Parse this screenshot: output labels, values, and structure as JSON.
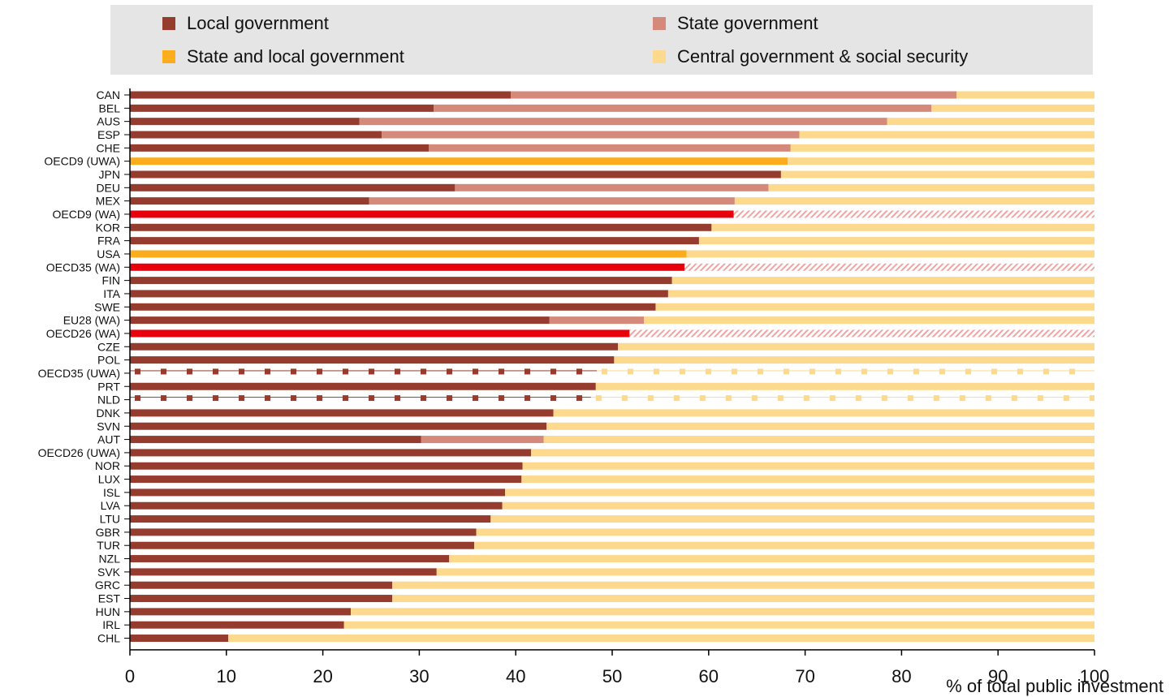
{
  "chart_data": {
    "type": "bar",
    "orientation": "horizontal",
    "stacked": true,
    "xlabel": "% of total public investment",
    "xlim": [
      0,
      100
    ],
    "xticks": [
      0,
      10,
      20,
      30,
      40,
      50,
      60,
      70,
      80,
      90,
      100
    ],
    "legend_position": "top",
    "legend": [
      {
        "key": "local",
        "label": "Local government",
        "color": "#963c2f"
      },
      {
        "key": "state",
        "label": "State government",
        "color": "#d4897a"
      },
      {
        "key": "state_local",
        "label": "State and local government",
        "color": "#fbad1d"
      },
      {
        "key": "central",
        "label": "Central government & social security",
        "color": "#fcd98c"
      }
    ],
    "colors": {
      "aggregate": "#e8000d",
      "aggregate_stripe": "#f2a3a3"
    },
    "rows": [
      {
        "label": "CAN",
        "local": 39.5,
        "state": 46.2,
        "state_local": 0,
        "total": 85.7
      },
      {
        "label": "BEL",
        "local": 31.5,
        "state": 51.6,
        "state_local": 0,
        "total": 83.1
      },
      {
        "label": "AUS",
        "local": 23.8,
        "state": 54.7,
        "state_local": 0,
        "total": 78.5
      },
      {
        "label": "ESP",
        "local": 26.1,
        "state": 43.3,
        "state_local": 0,
        "total": 69.4
      },
      {
        "label": "CHE",
        "local": 31.0,
        "state": 37.5,
        "state_local": 0,
        "total": 68.5
      },
      {
        "label": "OECD9 (UWA)",
        "local": 0,
        "state": 0,
        "state_local": 68.2,
        "total": 68.2
      },
      {
        "label": "JPN",
        "local": 67.5,
        "state": 0,
        "state_local": 0,
        "total": 67.5
      },
      {
        "label": "DEU",
        "local": 33.7,
        "state": 32.5,
        "state_local": 0,
        "total": 66.2
      },
      {
        "label": "MEX",
        "local": 24.8,
        "state": 37.9,
        "state_local": 0,
        "total": 62.7
      },
      {
        "label": "OECD9 (WA)",
        "aggregate": true,
        "value": 62.6
      },
      {
        "label": "KOR",
        "local": 60.3,
        "state": 0,
        "state_local": 0,
        "total": 60.3
      },
      {
        "label": "FRA",
        "local": 59.0,
        "state": 0,
        "state_local": 0,
        "total": 59.0
      },
      {
        "label": "USA",
        "local": 0,
        "state": 0,
        "state_local": 57.7,
        "total": 57.7
      },
      {
        "label": "OECD35 (WA)",
        "aggregate": true,
        "value": 57.5
      },
      {
        "label": "FIN",
        "local": 56.2,
        "state": 0,
        "state_local": 0,
        "total": 56.2
      },
      {
        "label": "ITA",
        "local": 55.8,
        "state": 0,
        "state_local": 0,
        "total": 55.8
      },
      {
        "label": "SWE",
        "local": 54.5,
        "state": 0,
        "state_local": 0,
        "total": 54.5
      },
      {
        "label": "EU28 (WA)",
        "local": 43.5,
        "state": 9.8,
        "state_local": 0,
        "total": 53.3
      },
      {
        "label": "OECD26 (WA)",
        "aggregate": true,
        "value": 51.8
      },
      {
        "label": "CZE",
        "local": 50.6,
        "state": 0,
        "state_local": 0,
        "total": 50.6
      },
      {
        "label": "POL",
        "local": 50.2,
        "state": 0,
        "state_local": 0,
        "total": 50.2
      },
      {
        "label": "OECD35 (UWA)",
        "dashed": true,
        "local": 48.4,
        "state": 0,
        "state_local": 0,
        "total": 48.4
      },
      {
        "label": "PRT",
        "local": 48.3,
        "state": 0,
        "state_local": 0,
        "total": 48.3
      },
      {
        "label": "NLD",
        "dashed": true,
        "local": 47.8,
        "state": 0,
        "state_local": 0,
        "total": 47.8
      },
      {
        "label": "DNK",
        "local": 43.9,
        "state": 0,
        "state_local": 0,
        "total": 43.9
      },
      {
        "label": "SVN",
        "local": 43.2,
        "state": 0,
        "state_local": 0,
        "total": 43.2
      },
      {
        "label": "AUT",
        "local": 30.2,
        "state": 12.7,
        "state_local": 0,
        "total": 42.9
      },
      {
        "label": "OECD26 (UWA)",
        "local": 41.6,
        "state": 0,
        "state_local": 0,
        "total": 41.6
      },
      {
        "label": "NOR",
        "local": 40.7,
        "state": 0,
        "state_local": 0,
        "total": 40.7
      },
      {
        "label": "LUX",
        "local": 40.6,
        "state": 0,
        "state_local": 0,
        "total": 40.6
      },
      {
        "label": "ISL",
        "local": 38.9,
        "state": 0,
        "state_local": 0,
        "total": 38.9
      },
      {
        "label": "LVA",
        "local": 38.6,
        "state": 0,
        "state_local": 0,
        "total": 38.6
      },
      {
        "label": "LTU",
        "local": 37.4,
        "state": 0,
        "state_local": 0,
        "total": 37.4
      },
      {
        "label": "GBR",
        "local": 35.9,
        "state": 0,
        "state_local": 0,
        "total": 35.9
      },
      {
        "label": "TUR",
        "local": 35.7,
        "state": 0,
        "state_local": 0,
        "total": 35.7
      },
      {
        "label": "NZL",
        "local": 33.1,
        "state": 0,
        "state_local": 0,
        "total": 33.1
      },
      {
        "label": "SVK",
        "local": 31.8,
        "state": 0,
        "state_local": 0,
        "total": 31.8
      },
      {
        "label": "GRC",
        "local": 27.2,
        "state": 0,
        "state_local": 0,
        "total": 27.2
      },
      {
        "label": "EST",
        "local": 27.2,
        "state": 0,
        "state_local": 0,
        "total": 27.2
      },
      {
        "label": "HUN",
        "local": 22.9,
        "state": 0,
        "state_local": 0,
        "total": 22.9
      },
      {
        "label": "IRL",
        "local": 22.2,
        "state": 0,
        "state_local": 0,
        "total": 22.2
      },
      {
        "label": "CHL",
        "local": 10.2,
        "state": 0,
        "state_local": 0,
        "total": 10.2
      }
    ]
  }
}
